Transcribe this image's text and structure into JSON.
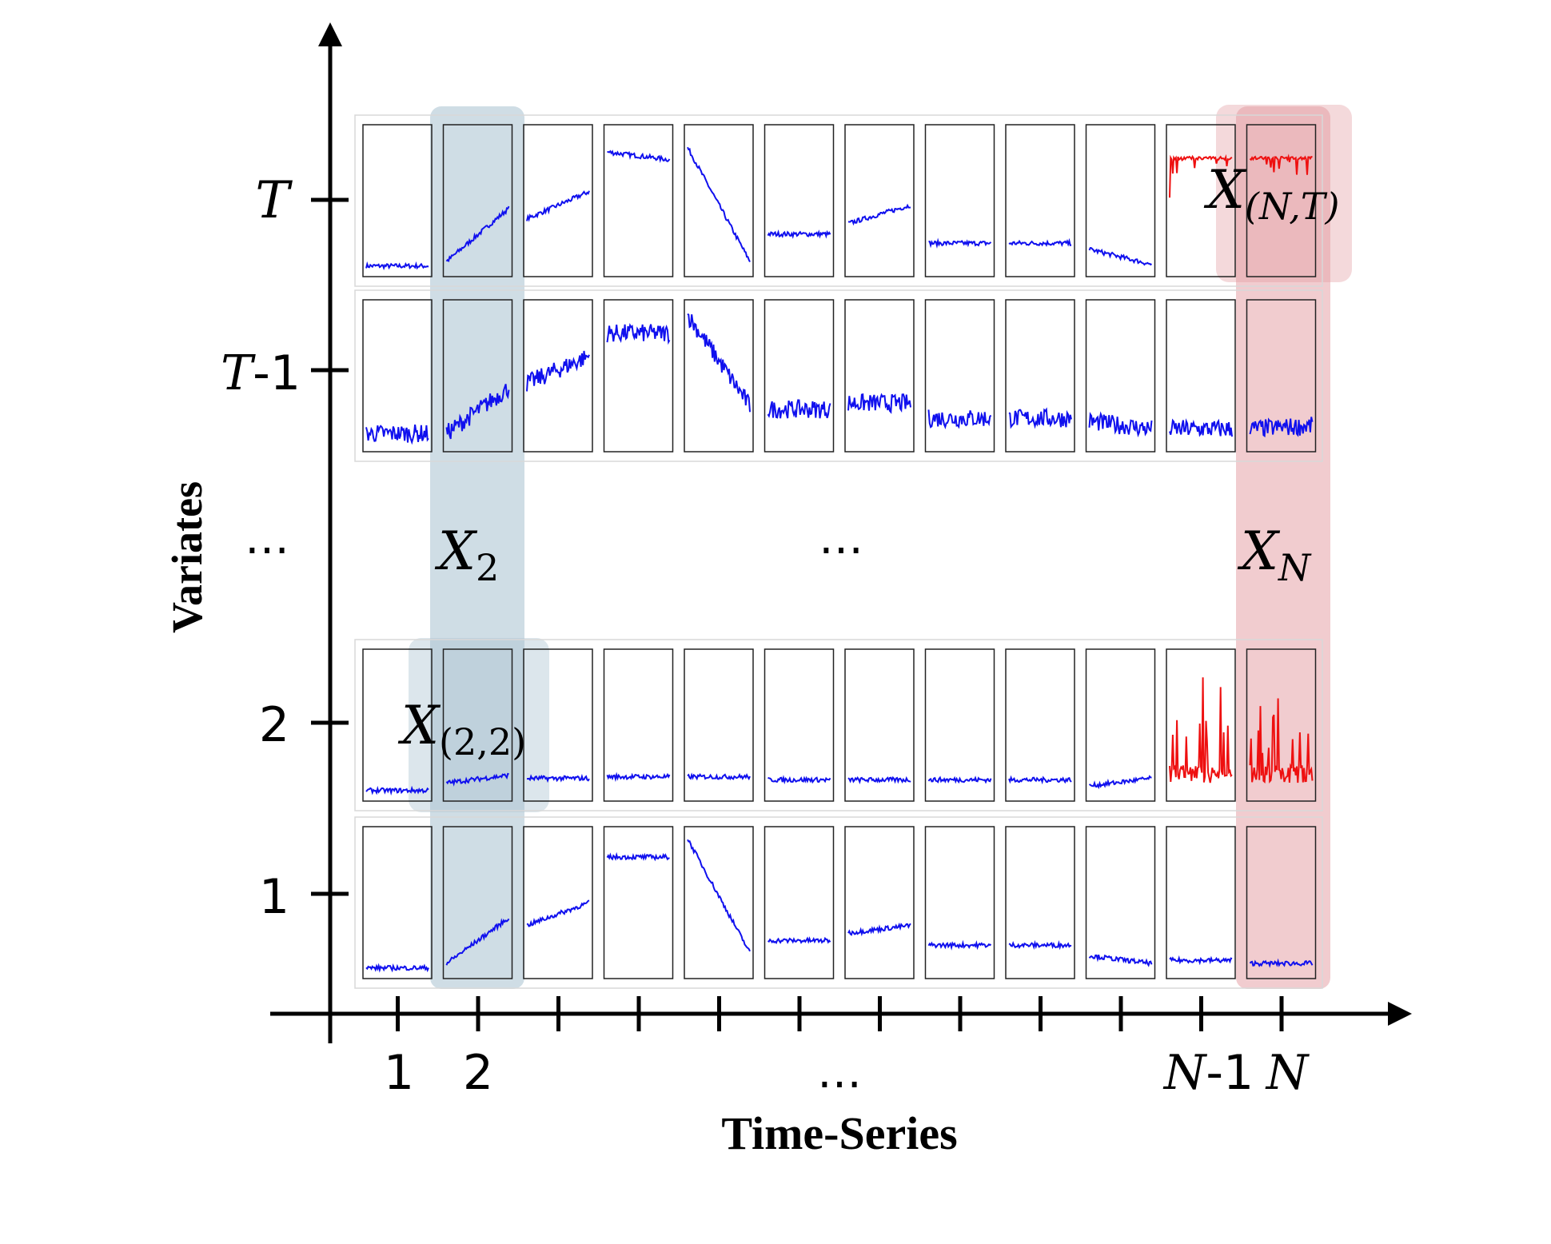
{
  "y_axis": {
    "title": "Variates",
    "ticks": [
      {
        "italic": "",
        "plain": "1"
      },
      {
        "italic": "",
        "plain": "2"
      },
      {
        "italic": "",
        "plain": "…"
      },
      {
        "italic": "T",
        "plain": "-1"
      },
      {
        "italic": "T",
        "plain": ""
      }
    ]
  },
  "x_axis": {
    "title": "Time-Series",
    "ticks": [
      {
        "italic": "",
        "plain": "1"
      },
      {
        "italic": "",
        "plain": "2"
      },
      {
        "italic": "N",
        "plain": "-1"
      },
      {
        "italic": "N",
        "plain": ""
      }
    ],
    "ellipsis": "…"
  },
  "grid_ellipsis": "…",
  "annotations": {
    "column_2": {
      "base": "X",
      "sub": "2"
    },
    "column_n": {
      "base": "X",
      "sub": "N"
    },
    "cell_2_2": {
      "base": "X",
      "sub": "(2,2)"
    },
    "cell_n_t": {
      "base": "X",
      "sub": "(N,T)"
    }
  },
  "colors": {
    "series_normal": "#1010ee",
    "series_anomalous": "#ee1010",
    "column_2_highlight": "#a7c1cf",
    "column_n_highlight": "#e39aa0"
  },
  "grid": {
    "columns": 12,
    "rows": [
      {
        "variate": "T",
        "red_columns": [
          11,
          12
        ]
      },
      {
        "variate": "T-1",
        "red_columns": []
      },
      {
        "variate": "2",
        "red_columns": [
          11,
          12
        ]
      },
      {
        "variate": "1",
        "red_columns": []
      }
    ]
  }
}
